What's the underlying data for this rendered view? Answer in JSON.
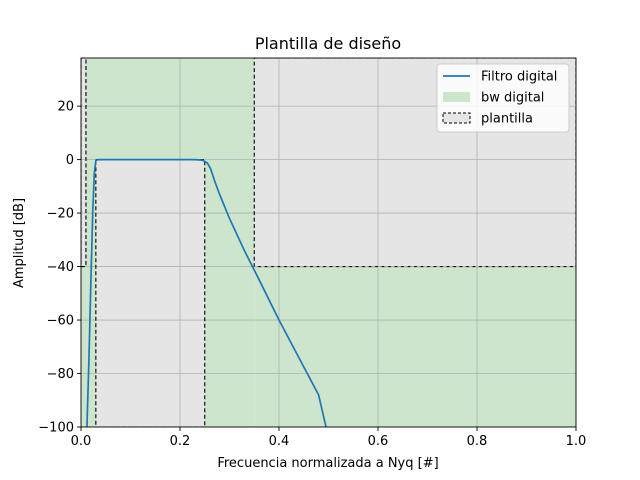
{
  "chart_data": {
    "type": "line",
    "title": "Plantilla de diseño",
    "xlabel": "Frecuencia normalizada a Nyq [#]",
    "ylabel": "Amplitud [dB]",
    "xlim": [
      0.0,
      1.0
    ],
    "ylim": [
      -100,
      38
    ],
    "xticks": [
      0.0,
      0.2,
      0.4,
      0.6,
      0.8,
      1.0
    ],
    "xtick_labels": [
      "0.0",
      "0.2",
      "0.4",
      "0.6",
      "0.8",
      "1.0"
    ],
    "yticks": [
      -100,
      -80,
      -60,
      -40,
      -20,
      0,
      20
    ],
    "ytick_labels": [
      "−100",
      "−80",
      "−60",
      "−40",
      "−20",
      "0",
      "20"
    ],
    "grid": true,
    "legend_position": "top-right",
    "legend": [
      {
        "label": "Filtro digital",
        "kind": "line",
        "color": "#1f77b4"
      },
      {
        "label": "bw digital",
        "kind": "patch",
        "color": "#cde5cc"
      },
      {
        "label": "plantilla",
        "kind": "dashed-box",
        "color": "#000000"
      }
    ],
    "colors": {
      "filter": "#1f77b4",
      "bw_fill": "#cde5cc",
      "stop_fill": "#e5e5e5",
      "plantilla_edge": "#000000",
      "grid": "#b0b0b0"
    },
    "bw_regions": [
      {
        "x0": 0.0,
        "x1": 0.35,
        "y0": -100,
        "y1": 38
      },
      {
        "x0": 0.35,
        "x1": 1.0,
        "y0": -100,
        "y1": -40
      }
    ],
    "stop_regions": [
      {
        "x0": 0.0,
        "x1": 0.01,
        "y0": -40,
        "y1": 38
      },
      {
        "x0": 0.35,
        "x1": 1.0,
        "y0": -40,
        "y1": 38
      }
    ],
    "pass_region": {
      "x0": 0.03,
      "x1": 0.25,
      "y0": -100,
      "y1": 0
    },
    "series": [
      {
        "name": "Filtro digital",
        "x": [
          0.012,
          0.016,
          0.02,
          0.024,
          0.027,
          0.03,
          0.035,
          0.05,
          0.1,
          0.15,
          0.2,
          0.23,
          0.245,
          0.255,
          0.262,
          0.27,
          0.28,
          0.3,
          0.33,
          0.36,
          0.4,
          0.44,
          0.48,
          0.495
        ],
        "y": [
          -100,
          -75,
          -45,
          -18,
          -5,
          -0.3,
          0,
          0,
          0,
          0,
          0,
          0,
          -0.2,
          -1.2,
          -3.5,
          -8,
          -13,
          -22,
          -34,
          -45,
          -60,
          -74,
          -88,
          -100
        ]
      }
    ]
  }
}
